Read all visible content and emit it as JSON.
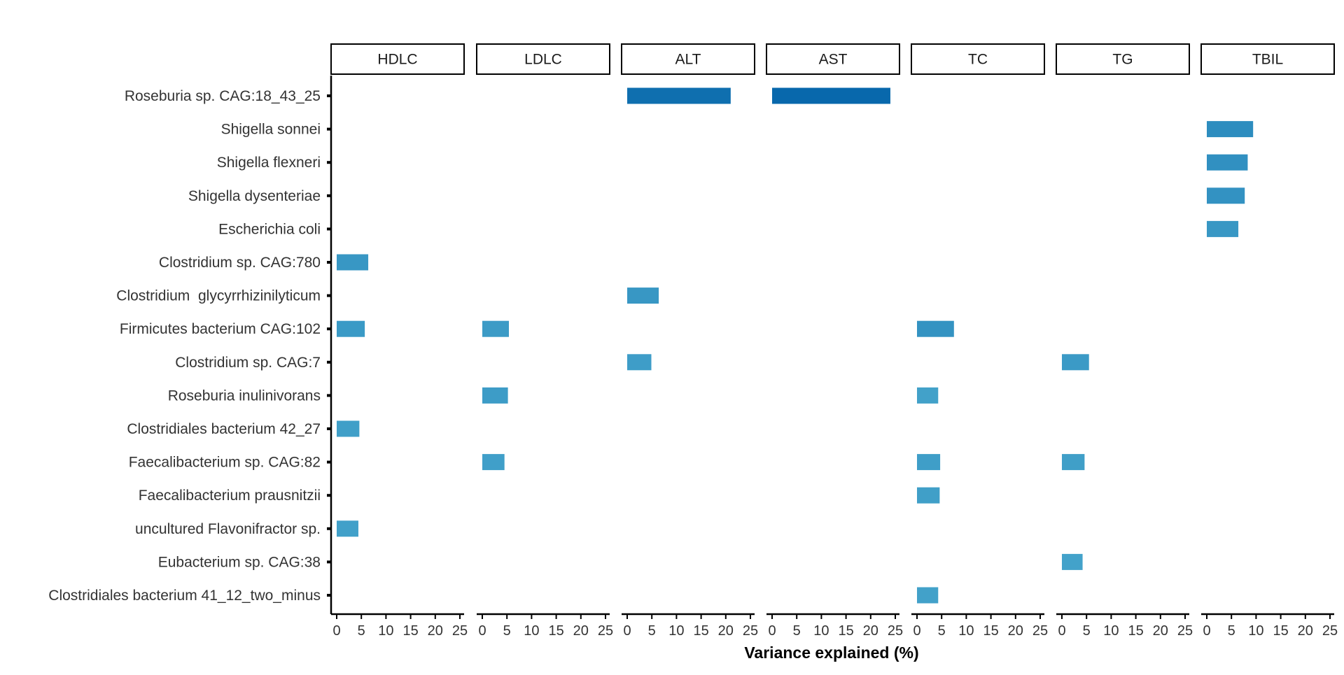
{
  "chart_data": {
    "type": "bar",
    "orientation": "horizontal",
    "xlabel": "Variance explained (%)",
    "ylabel": "",
    "xlim": [
      0,
      25
    ],
    "x_ticks": [
      0,
      5,
      10,
      15,
      20,
      25
    ],
    "grid": false,
    "legend": "none",
    "facets": [
      "HDLC",
      "LDLC",
      "ALT",
      "AST",
      "TC",
      "TG",
      "TBIL"
    ],
    "categories": [
      "Roseburia sp. CAG:18_43_25",
      "Shigella sonnei",
      "Shigella flexneri",
      "Shigella dysenteriae",
      "Escherichia coli",
      "Clostridium sp. CAG:780",
      "Clostridium  glycyrrhizinilyticum",
      "Firmicutes bacterium CAG:102",
      "Clostridium sp. CAG:7",
      "Roseburia inulinivorans",
      "Clostridiales bacterium 42_27",
      "Faecalibacterium sp. CAG:82",
      "Faecalibacterium prausnitzii",
      "uncultured Flavonifractor sp.",
      "Eubacterium sp. CAG:38",
      "Clostridiales bacterium 41_12_two_minus"
    ],
    "bars": [
      {
        "facet": "ALT",
        "category": "Roseburia sp. CAG:18_43_25",
        "value": 21.0
      },
      {
        "facet": "AST",
        "category": "Roseburia sp. CAG:18_43_25",
        "value": 24.0
      },
      {
        "facet": "TBIL",
        "category": "Shigella sonnei",
        "value": 9.4
      },
      {
        "facet": "TBIL",
        "category": "Shigella flexneri",
        "value": 8.3
      },
      {
        "facet": "TBIL",
        "category": "Shigella dysenteriae",
        "value": 7.7
      },
      {
        "facet": "TBIL",
        "category": "Escherichia coli",
        "value": 6.4
      },
      {
        "facet": "HDLC",
        "category": "Clostridium sp. CAG:780",
        "value": 6.4
      },
      {
        "facet": "ALT",
        "category": "Clostridium  glycyrrhizinilyticum",
        "value": 6.4
      },
      {
        "facet": "HDLC",
        "category": "Firmicutes bacterium CAG:102",
        "value": 5.7
      },
      {
        "facet": "LDLC",
        "category": "Firmicutes bacterium CAG:102",
        "value": 5.4
      },
      {
        "facet": "TC",
        "category": "Firmicutes bacterium CAG:102",
        "value": 7.5
      },
      {
        "facet": "ALT",
        "category": "Clostridium sp. CAG:7",
        "value": 4.9
      },
      {
        "facet": "TG",
        "category": "Clostridium sp. CAG:7",
        "value": 5.5
      },
      {
        "facet": "LDLC",
        "category": "Roseburia inulinivorans",
        "value": 5.2
      },
      {
        "facet": "TC",
        "category": "Roseburia inulinivorans",
        "value": 4.3
      },
      {
        "facet": "HDLC",
        "category": "Clostridiales bacterium 42_27",
        "value": 4.6
      },
      {
        "facet": "LDLC",
        "category": "Faecalibacterium sp. CAG:82",
        "value": 4.5
      },
      {
        "facet": "TC",
        "category": "Faecalibacterium sp. CAG:82",
        "value": 4.7
      },
      {
        "facet": "TG",
        "category": "Faecalibacterium sp. CAG:82",
        "value": 4.6
      },
      {
        "facet": "TC",
        "category": "Faecalibacterium prausnitzii",
        "value": 4.6
      },
      {
        "facet": "HDLC",
        "category": "uncultured Flavonifractor sp.",
        "value": 4.4
      },
      {
        "facet": "TG",
        "category": "Eubacterium sp. CAG:38",
        "value": 4.2
      },
      {
        "facet": "TC",
        "category": "Clostridiales bacterium 41_12_two_minus",
        "value": 4.3
      }
    ],
    "color_scale": {
      "low": "#43a2ca",
      "high": "#0868ac"
    }
  }
}
